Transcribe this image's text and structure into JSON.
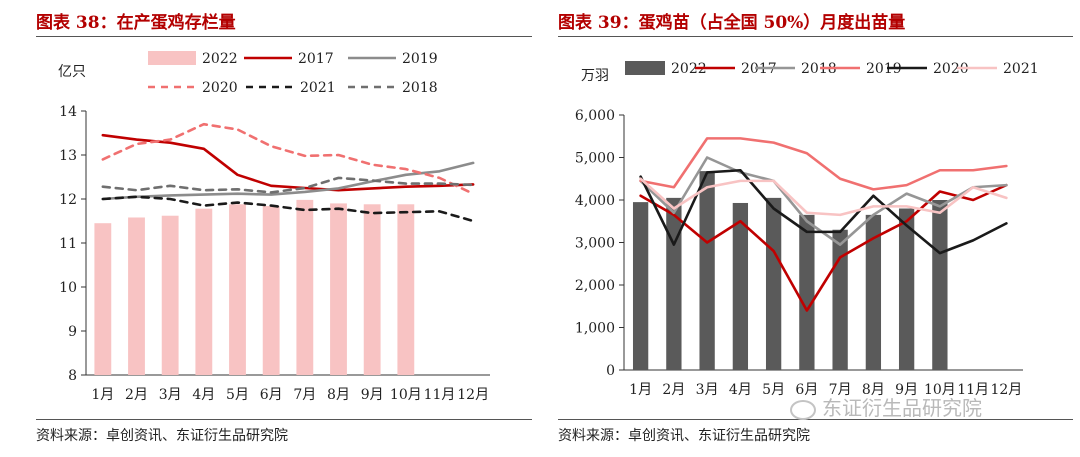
{
  "watermark": "东证衍生品研究院",
  "chart_data": [
    {
      "type": "bar+line",
      "title": "图表 38：在产蛋鸡存栏量",
      "ylabel": "亿只",
      "ylim": [
        8,
        14
      ],
      "yticks": [
        "8",
        "9",
        "10",
        "11",
        "12",
        "13",
        "14"
      ],
      "categories": [
        "1月",
        "2月",
        "3月",
        "4月",
        "5月",
        "6月",
        "7月",
        "8月",
        "9月",
        "10月",
        "11月",
        "12月"
      ],
      "legend": [
        "2022",
        "2017",
        "2019",
        "2020",
        "2021",
        "2018"
      ],
      "bars": {
        "name": "2022",
        "color": "#f8c3c3",
        "values": [
          11.45,
          11.58,
          11.62,
          11.78,
          11.88,
          11.84,
          11.98,
          11.9,
          11.88,
          11.88,
          null,
          null
        ]
      },
      "series": [
        {
          "name": "2017",
          "color": "#c00000",
          "dash": "solid",
          "values": [
            13.45,
            13.35,
            13.28,
            13.14,
            12.55,
            12.3,
            12.25,
            12.2,
            12.24,
            12.28,
            12.3,
            12.33
          ]
        },
        {
          "name": "2019",
          "color": "#8c8c8c",
          "dash": "solid",
          "values": [
            12.0,
            12.05,
            12.08,
            12.1,
            12.12,
            12.1,
            12.16,
            12.24,
            12.4,
            12.55,
            12.63,
            12.82
          ]
        },
        {
          "name": "2020",
          "color": "#f07070",
          "dash": "dashed",
          "values": [
            12.9,
            13.25,
            13.35,
            13.7,
            13.58,
            13.2,
            12.98,
            13.0,
            12.78,
            12.68,
            12.48,
            12.12
          ]
        },
        {
          "name": "2021",
          "color": "#1a1a1a",
          "dash": "dashed",
          "values": [
            12.0,
            12.05,
            12.0,
            11.85,
            11.92,
            11.85,
            11.75,
            11.78,
            11.68,
            11.7,
            11.72,
            11.5
          ]
        },
        {
          "name": "2018",
          "color": "#6f6f6f",
          "dash": "dashed",
          "values": [
            12.28,
            12.2,
            12.3,
            12.2,
            12.22,
            12.15,
            12.25,
            12.48,
            12.42,
            12.35,
            12.35,
            12.32
          ]
        }
      ],
      "source": "资料来源：卓创资讯、东证衍生品研究院"
    },
    {
      "type": "bar+line",
      "title": "图表 39：蛋鸡苗（占全国 50%）月度出苗量",
      "ylabel": "万羽",
      "ylim": [
        0,
        6000
      ],
      "yticks": [
        "0",
        "1,000",
        "2,000",
        "3,000",
        "4,000",
        "5,000",
        "6,000"
      ],
      "categories": [
        "1月",
        "2月",
        "3月",
        "4月",
        "5月",
        "6月",
        "7月",
        "8月",
        "9月",
        "10月",
        "11月",
        "12月"
      ],
      "legend": [
        "2022",
        "2017",
        "2018",
        "2019",
        "2020",
        "2021"
      ],
      "bars": {
        "name": "2022",
        "color": "#5a5a5a",
        "values": [
          3950,
          4050,
          4680,
          3930,
          4050,
          3650,
          3300,
          3650,
          3800,
          4000,
          null,
          null
        ]
      },
      "series": [
        {
          "name": "2017",
          "color": "#c00000",
          "dash": "solid",
          "values": [
            4100,
            3650,
            3000,
            3500,
            2800,
            1400,
            2650,
            3100,
            3500,
            4200,
            4000,
            4350
          ]
        },
        {
          "name": "2018",
          "color": "#969696",
          "dash": "solid",
          "values": [
            4450,
            3700,
            5000,
            4650,
            4450,
            3500,
            2950,
            3650,
            4150,
            3850,
            4300,
            4350
          ]
        },
        {
          "name": "2019",
          "color": "#f07070",
          "dash": "solid",
          "values": [
            4450,
            4300,
            5450,
            5450,
            5350,
            5100,
            4500,
            4250,
            4350,
            4700,
            4700,
            4800
          ]
        },
        {
          "name": "2020",
          "color": "#1a1a1a",
          "dash": "solid",
          "values": [
            4550,
            2950,
            4650,
            4700,
            3800,
            3250,
            3250,
            4100,
            3400,
            2750,
            3050,
            3450
          ]
        },
        {
          "name": "2021",
          "color": "#f8c3c3",
          "dash": "solid",
          "values": [
            4500,
            3800,
            4300,
            4450,
            4450,
            3700,
            3650,
            3850,
            3850,
            3700,
            4300,
            4050
          ]
        }
      ],
      "source": "资料来源：卓创资讯、东证衍生品研究院"
    }
  ]
}
